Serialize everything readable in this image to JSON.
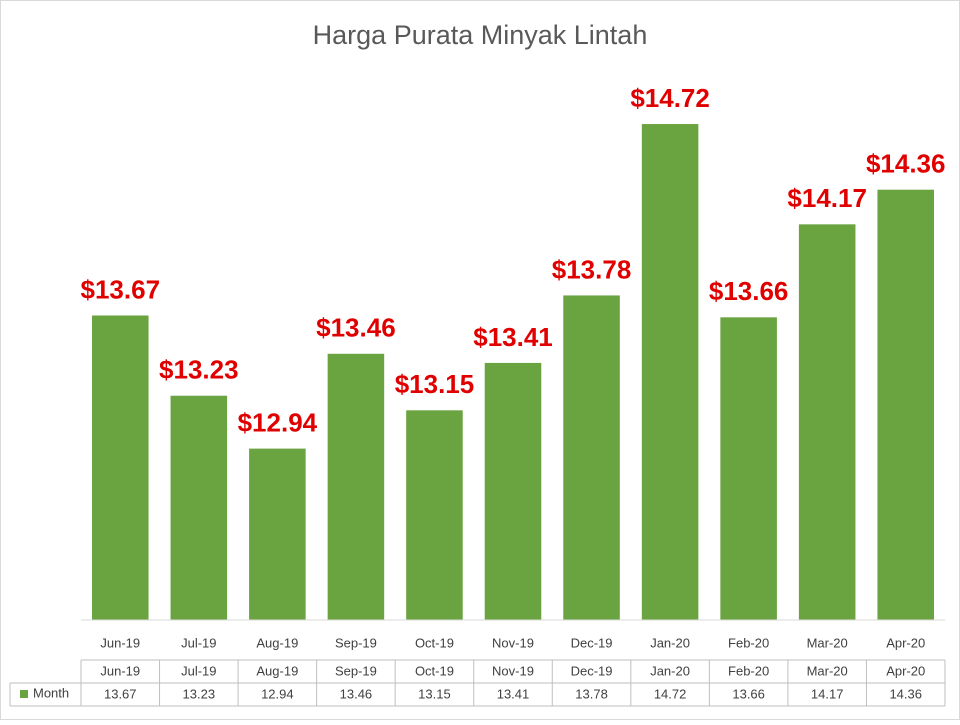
{
  "chart_data": {
    "type": "bar",
    "title": "Harga Purata Minyak Lintah",
    "categories": [
      "Jun-19",
      "Jul-19",
      "Aug-19",
      "Sep-19",
      "Oct-19",
      "Nov-19",
      "Dec-19",
      "Jan-20",
      "Feb-20",
      "Mar-20",
      "Apr-20"
    ],
    "series": [
      {
        "name": "Month",
        "color": "#6aa441",
        "values": [
          13.67,
          13.23,
          12.94,
          13.46,
          13.15,
          13.41,
          13.78,
          14.72,
          13.66,
          14.17,
          14.36
        ],
        "value_labels": [
          "$13.67",
          "$13.23",
          "$12.94",
          "$13.46",
          "$13.15",
          "$13.41",
          "$13.78",
          "$14.72",
          "$13.66",
          "$14.17",
          "$14.36"
        ],
        "label_color": "#e00000"
      }
    ],
    "ylim": [
      12,
      15
    ],
    "data_table": true
  }
}
